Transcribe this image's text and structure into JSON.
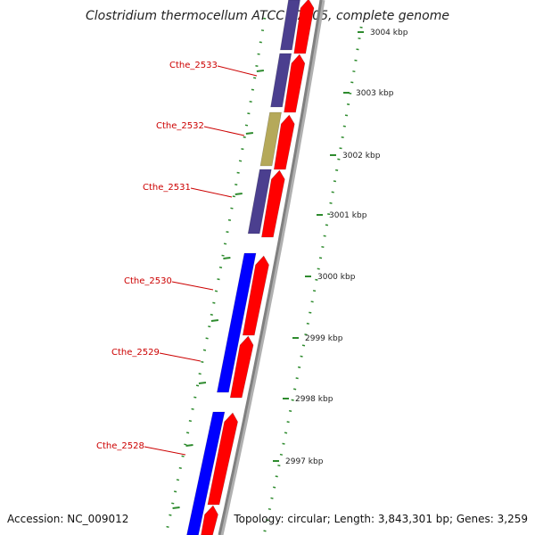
{
  "title": "Clostridium thermocellum ATCC 27405, complete genome",
  "footer": {
    "accession": "Accession: NC_009012",
    "topology": "Topology: circular; Length: 3,843,301 bp; Genes: 3,259"
  },
  "colors": {
    "label": "#cc0000",
    "forward_strand": "#ff0000",
    "reverse_blue": "#0000ff",
    "reverse_purple": "#4b3f8f",
    "reverse_olive": "#b5a95a",
    "gc_dots": "#2e8b2e",
    "backbone": "#808080"
  },
  "genes": [
    {
      "label": "Cthe_2533"
    },
    {
      "label": "Cthe_2532"
    },
    {
      "label": "Cthe_2531"
    },
    {
      "label": "Cthe_2530"
    },
    {
      "label": "Cthe_2529"
    },
    {
      "label": "Cthe_2528"
    }
  ],
  "ruler_ticks": [
    "3004 kbp",
    "3003 kbp",
    "3002 kbp",
    "3001 kbp",
    "3000 kbp",
    "2999 kbp",
    "2998 kbp",
    "2997 kbp"
  ]
}
